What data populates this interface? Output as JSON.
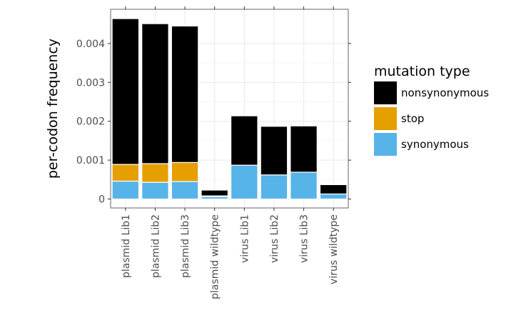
{
  "chart_data": {
    "type": "bar",
    "stacked": true,
    "categories": [
      "plasmid Lib1",
      "plasmid Lib2",
      "plasmid Lib3",
      "plasmid wildtype",
      "virus Lib1",
      "virus Lib2",
      "virus Lib3",
      "virus wildtype"
    ],
    "series": [
      {
        "name": "synonymous",
        "color": "#56B4E9",
        "values": [
          0.00046,
          0.00043,
          0.00045,
          6e-05,
          0.00087,
          0.00062,
          0.00069,
          0.00013
        ]
      },
      {
        "name": "stop",
        "color": "#E69F00",
        "values": [
          0.00043,
          0.00048,
          0.00049,
          2e-05,
          0.0,
          0.0,
          0.0,
          0.0
        ]
      },
      {
        "name": "nonsynonymous",
        "color": "#000000",
        "values": [
          0.00375,
          0.0036,
          0.00351,
          0.00015,
          0.00127,
          0.00125,
          0.00119,
          0.00024
        ]
      }
    ],
    "title": "",
    "xlabel": "",
    "ylabel": "per-codon frequency",
    "ylim": [
      0,
      0.00465
    ],
    "yticks": [
      0,
      0.001,
      0.002,
      0.003,
      0.004
    ],
    "ytick_labels": [
      "0",
      "0.001",
      "0.002",
      "0.003",
      "0.004"
    ],
    "grid": true,
    "legend": {
      "title": "mutation type",
      "placement": "right",
      "order": [
        "nonsynonymous",
        "stop",
        "synonymous"
      ]
    }
  }
}
